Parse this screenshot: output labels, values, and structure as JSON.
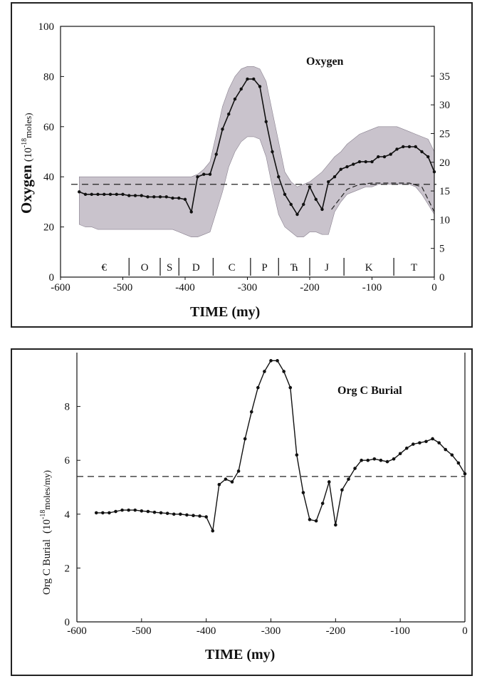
{
  "chart_data": [
    {
      "type": "line",
      "title": "Oxygen",
      "xlabel": "TIME  (my)",
      "ylabel": "Oxygen",
      "ylabel_unit": "(10",
      "ylabel_exp": "-18",
      "ylabel_unit2": "moles)",
      "xlim": [
        -600,
        0
      ],
      "ylim": [
        0,
        100
      ],
      "xticks": [
        "-600",
        "-500",
        "-400",
        "-300",
        "-200",
        "-100",
        "0"
      ],
      "yticks": [
        "0",
        "20",
        "40",
        "60",
        "80",
        "100"
      ],
      "y2ticks": [
        "0",
        "5",
        "10",
        "15",
        "20",
        "25",
        "30",
        "35"
      ],
      "y2_values": [
        0,
        5,
        10,
        15,
        20,
        25,
        30,
        35
      ],
      "y2_scale_per_unit": 2.29,
      "reference_line": 37,
      "periods": [
        "€",
        "O",
        "S",
        "D",
        "C",
        "P",
        "Ћ",
        "J",
        "K",
        "T"
      ],
      "period_boundaries": [
        -490,
        -440,
        -410,
        -355,
        -295,
        -250,
        -200,
        -145,
        -65
      ],
      "x": [
        -570,
        -560,
        -550,
        -540,
        -530,
        -520,
        -510,
        -500,
        -490,
        -480,
        -470,
        -460,
        -450,
        -440,
        -430,
        -420,
        -410,
        -400,
        -390,
        -380,
        -370,
        -360,
        -350,
        -340,
        -330,
        -320,
        -310,
        -300,
        -290,
        -280,
        -270,
        -260,
        -250,
        -240,
        -230,
        -220,
        -210,
        -200,
        -190,
        -180,
        -170,
        -160,
        -150,
        -140,
        -130,
        -120,
        -110,
        -100,
        -90,
        -80,
        -70,
        -60,
        -50,
        -40,
        -30,
        -20,
        -10,
        0
      ],
      "values": [
        34,
        33,
        33,
        33,
        33,
        33,
        33,
        33,
        32.5,
        32.5,
        32.5,
        32,
        32,
        32,
        32,
        31.5,
        31.5,
        31,
        26,
        40,
        41,
        41,
        49,
        59,
        65,
        71,
        75,
        79,
        79,
        76,
        62,
        50,
        40,
        33,
        29,
        25,
        29,
        36,
        31,
        27,
        38,
        40,
        43,
        44,
        45,
        46,
        46,
        46,
        48,
        48,
        49,
        51,
        52,
        52,
        52,
        50,
        48,
        42
      ],
      "band_upper": [
        40,
        40,
        40,
        40,
        40,
        40,
        40,
        40,
        40,
        40,
        40,
        40,
        40,
        40,
        40,
        40,
        40,
        40,
        40,
        41,
        43,
        46,
        57,
        68,
        75,
        80,
        83,
        84,
        84,
        83,
        78,
        66,
        54,
        42,
        38,
        36,
        37,
        38,
        40,
        42,
        45,
        48,
        50,
        53,
        55,
        57,
        58,
        59,
        60,
        60,
        60,
        60,
        59,
        58,
        57,
        56,
        55,
        50
      ],
      "band_lower": [
        21,
        20,
        20,
        19,
        19,
        19,
        19,
        19,
        19,
        19,
        19,
        19,
        19,
        19,
        19,
        19,
        18,
        17,
        16,
        16,
        17,
        18,
        26,
        34,
        44,
        50,
        54,
        56,
        56,
        55,
        48,
        36,
        25,
        20,
        18,
        16,
        16,
        18,
        18,
        17,
        17,
        26,
        30,
        33,
        34,
        35,
        36,
        36,
        37,
        37,
        37,
        37,
        37,
        37,
        36,
        33,
        29,
        25
      ],
      "dashed_lower": [
        -165,
        -140,
        -120,
        -100,
        -80,
        -60,
        -40,
        -20,
        -10,
        0
      ],
      "dashed_lower_values": [
        27,
        35,
        37,
        37.5,
        37.5,
        37.5,
        37.5,
        36,
        31,
        26
      ]
    },
    {
      "type": "line",
      "title": "Org C Burial",
      "xlabel": "TIME  (my)",
      "ylabel": "Org C Burial",
      "ylabel_unit": "(10",
      "ylabel_exp": "-18",
      "ylabel_unit2": "moles/my)",
      "xlim": [
        -600,
        0
      ],
      "ylim": [
        0,
        10
      ],
      "xticks": [
        "-600",
        "-500",
        "-400",
        "-300",
        "-200",
        "-100",
        "0"
      ],
      "yticks": [
        "0",
        "2",
        "4",
        "6",
        "8"
      ],
      "reference_line": 5.4,
      "x": [
        -570,
        -560,
        -550,
        -540,
        -530,
        -520,
        -510,
        -500,
        -490,
        -480,
        -470,
        -460,
        -450,
        -440,
        -430,
        -420,
        -410,
        -400,
        -390,
        -380,
        -370,
        -360,
        -350,
        -340,
        -330,
        -320,
        -310,
        -300,
        -290,
        -280,
        -270,
        -260,
        -250,
        -240,
        -230,
        -220,
        -210,
        -200,
        -190,
        -180,
        -170,
        -160,
        -150,
        -140,
        -130,
        -120,
        -110,
        -100,
        -90,
        -80,
        -70,
        -60,
        -50,
        -40,
        -30,
        -20,
        -10,
        0
      ],
      "values": [
        4.05,
        4.05,
        4.05,
        4.1,
        4.15,
        4.15,
        4.15,
        4.12,
        4.1,
        4.07,
        4.05,
        4.03,
        4.0,
        4.0,
        3.97,
        3.95,
        3.93,
        3.9,
        3.38,
        5.1,
        5.3,
        5.2,
        5.6,
        6.8,
        7.8,
        8.7,
        9.3,
        9.7,
        9.7,
        9.3,
        8.7,
        6.2,
        4.8,
        3.8,
        3.75,
        4.4,
        5.2,
        3.6,
        4.9,
        5.3,
        5.7,
        6.0,
        6.0,
        6.05,
        6.0,
        5.95,
        6.05,
        6.25,
        6.45,
        6.6,
        6.65,
        6.7,
        6.8,
        6.65,
        6.4,
        6.2,
        5.9,
        5.5
      ]
    }
  ]
}
